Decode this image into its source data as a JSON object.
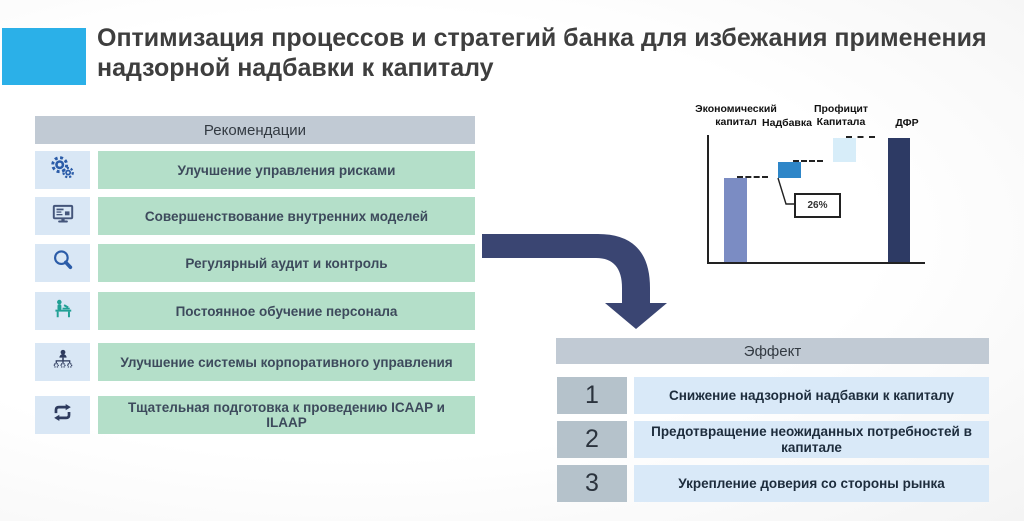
{
  "slide": {
    "title_line1": "Оптимизация процессов и стратегий банка для избежания применения",
    "title_line2": "надзорной надбавки к капиталу"
  },
  "recommendations": {
    "header": "Рекомендации",
    "items": [
      {
        "icon": "gears",
        "label": "Улучшение управления рисками"
      },
      {
        "icon": "monitor",
        "label": "Совершенствование внутренних моделей"
      },
      {
        "icon": "magnifier",
        "label": "Регулярный аудит и контроль"
      },
      {
        "icon": "training",
        "label": "Постоянное обучение персонала"
      },
      {
        "icon": "org-chart",
        "label": "Улучшение системы корпоративного управления"
      },
      {
        "icon": "repeat",
        "label": "Тщательная подготовка к проведению ICAAP и ILAAP"
      }
    ]
  },
  "effects": {
    "header": "Эффект",
    "items": [
      {
        "number": "1",
        "label": "Снижение надзорной надбавки к капиталу"
      },
      {
        "number": "2",
        "label": "Предотвращение неожиданных потребностей в капитале"
      },
      {
        "number": "3",
        "label": "Укрепление доверия со стороны рынка"
      }
    ]
  },
  "chart_data": {
    "type": "bar",
    "subtype": "waterfall",
    "categories": [
      "Экономический капитал",
      "Надбавка",
      "Профицит Капитала",
      "ДФР"
    ],
    "series": [
      {
        "name": "Экономический капитал",
        "start": 0,
        "end": 68,
        "color": "#7b8cc3"
      },
      {
        "name": "Надбавка",
        "start": 68,
        "end": 81,
        "color": "#2e86c8"
      },
      {
        "name": "Профицит Капитала",
        "start": 81,
        "end": 100,
        "color": "#d7edf9"
      },
      {
        "name": "ДФР",
        "start": 0,
        "end": 100,
        "color": "#2d3a64"
      }
    ],
    "ylim": [
      0,
      100
    ],
    "annotation_label": "26%",
    "annotation_target": "Надбавка",
    "legend": false,
    "grid": false
  },
  "colors": {
    "accent_blue": "#2bb0e8",
    "header_gray": "#c1cad4",
    "mint_green": "#b4dfc9",
    "icon_box_blue": "#d9e7f5",
    "effect_bar_blue": "#d9e9f8",
    "number_box_gray": "#b5c2cb",
    "arrow_navy": "#3a4572",
    "title_text": "#3e3e3e",
    "body_text": "#3d4a5c"
  }
}
